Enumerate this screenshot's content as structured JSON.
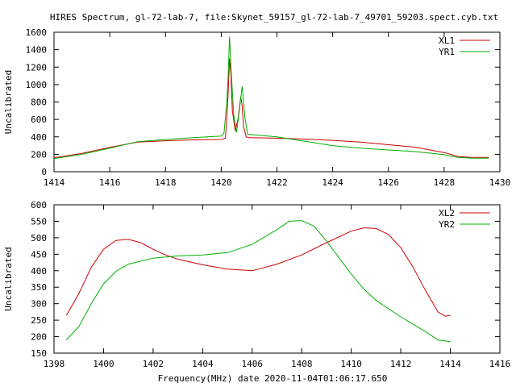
{
  "title": "HIRES Spectrum, gl-72-lab-7, file:Skynet_59157_gl-72-lab-7_49701_59203.spect.cyb.txt",
  "xlabel": "Frequency(MHz) date 2020-11-04T01:06:17.650",
  "colors": {
    "red": "#cc0000",
    "green": "#00b000"
  },
  "chart_data": [
    {
      "type": "line",
      "ylabel": "Uncalibrated",
      "xlim": [
        1414,
        1430
      ],
      "ylim": [
        0,
        1600
      ],
      "xticks": [
        1414,
        1416,
        1418,
        1420,
        1422,
        1424,
        1426,
        1428,
        1430
      ],
      "yticks": [
        0,
        200,
        400,
        600,
        800,
        1000,
        1200,
        1400,
        1600
      ],
      "grid": false,
      "legend": "top-right",
      "series": [
        {
          "name": "XL1",
          "color": "red",
          "points": [
            [
              1414.0,
              160
            ],
            [
              1415.0,
              210
            ],
            [
              1416.0,
              280
            ],
            [
              1417.0,
              340
            ],
            [
              1418.0,
              355
            ],
            [
              1419.0,
              365
            ],
            [
              1420.0,
              370
            ],
            [
              1420.15,
              385
            ],
            [
              1420.2,
              620
            ],
            [
              1420.25,
              900
            ],
            [
              1420.3,
              1300
            ],
            [
              1420.35,
              1100
            ],
            [
              1420.4,
              700
            ],
            [
              1420.5,
              470
            ],
            [
              1420.6,
              600
            ],
            [
              1420.7,
              860
            ],
            [
              1420.75,
              760
            ],
            [
              1420.8,
              520
            ],
            [
              1420.9,
              400
            ],
            [
              1421.0,
              390
            ],
            [
              1422.0,
              385
            ],
            [
              1423.0,
              375
            ],
            [
              1424.0,
              360
            ],
            [
              1425.0,
              340
            ],
            [
              1426.0,
              310
            ],
            [
              1427.0,
              280
            ],
            [
              1428.0,
              220
            ],
            [
              1428.5,
              175
            ],
            [
              1429.0,
              165
            ],
            [
              1429.6,
              165
            ]
          ]
        },
        {
          "name": "YR1",
          "color": "green",
          "points": [
            [
              1414.0,
              150
            ],
            [
              1415.0,
              200
            ],
            [
              1416.0,
              270
            ],
            [
              1417.0,
              345
            ],
            [
              1418.0,
              370
            ],
            [
              1419.0,
              390
            ],
            [
              1420.0,
              410
            ],
            [
              1420.1,
              440
            ],
            [
              1420.2,
              800
            ],
            [
              1420.25,
              1100
            ],
            [
              1420.3,
              1550
            ],
            [
              1420.35,
              1200
            ],
            [
              1420.45,
              650
            ],
            [
              1420.55,
              450
            ],
            [
              1420.65,
              700
            ],
            [
              1420.75,
              980
            ],
            [
              1420.85,
              620
            ],
            [
              1420.95,
              430
            ],
            [
              1422.0,
              400
            ],
            [
              1423.0,
              350
            ],
            [
              1424.0,
              300
            ],
            [
              1425.0,
              270
            ],
            [
              1426.0,
              250
            ],
            [
              1427.0,
              230
            ],
            [
              1428.0,
              195
            ],
            [
              1428.5,
              165
            ],
            [
              1429.0,
              155
            ],
            [
              1429.6,
              155
            ]
          ]
        }
      ]
    },
    {
      "type": "line",
      "ylabel": "Uncalibrated",
      "xlabel": "Frequency(MHz) date 2020-11-04T01:06:17.650",
      "xlim": [
        1398,
        1416
      ],
      "ylim": [
        150,
        600
      ],
      "xticks": [
        1398,
        1400,
        1402,
        1404,
        1406,
        1408,
        1410,
        1412,
        1414,
        1416
      ],
      "yticks": [
        150,
        200,
        250,
        300,
        350,
        400,
        450,
        500,
        550,
        600
      ],
      "grid": false,
      "legend": "top-right",
      "series": [
        {
          "name": "XL2",
          "color": "red",
          "points": [
            [
              1398.5,
              265
            ],
            [
              1399.0,
              330
            ],
            [
              1399.5,
              410
            ],
            [
              1400.0,
              465
            ],
            [
              1400.5,
              492
            ],
            [
              1401.0,
              495
            ],
            [
              1401.5,
              485
            ],
            [
              1402.0,
              465
            ],
            [
              1402.5,
              448
            ],
            [
              1403.0,
              435
            ],
            [
              1404.0,
              418
            ],
            [
              1405.0,
              405
            ],
            [
              1406.0,
              400
            ],
            [
              1407.0,
              420
            ],
            [
              1408.0,
              448
            ],
            [
              1409.0,
              485
            ],
            [
              1410.0,
              520
            ],
            [
              1410.5,
              530
            ],
            [
              1411.0,
              528
            ],
            [
              1411.5,
              510
            ],
            [
              1412.0,
              470
            ],
            [
              1412.5,
              410
            ],
            [
              1413.0,
              340
            ],
            [
              1413.5,
              275
            ],
            [
              1413.8,
              262
            ],
            [
              1414.0,
              265
            ]
          ]
        },
        {
          "name": "YR2",
          "color": "green",
          "points": [
            [
              1398.5,
              190
            ],
            [
              1399.0,
              230
            ],
            [
              1399.5,
              300
            ],
            [
              1400.0,
              360
            ],
            [
              1400.5,
              398
            ],
            [
              1401.0,
              420
            ],
            [
              1402.0,
              438
            ],
            [
              1403.0,
              445
            ],
            [
              1404.0,
              448
            ],
            [
              1405.0,
              455
            ],
            [
              1406.0,
              480
            ],
            [
              1407.0,
              525
            ],
            [
              1407.5,
              550
            ],
            [
              1408.0,
              552
            ],
            [
              1408.5,
              535
            ],
            [
              1409.0,
              490
            ],
            [
              1409.5,
              440
            ],
            [
              1410.0,
              390
            ],
            [
              1410.5,
              345
            ],
            [
              1411.0,
              310
            ],
            [
              1412.0,
              260
            ],
            [
              1413.0,
              215
            ],
            [
              1413.5,
              190
            ],
            [
              1414.0,
              185
            ]
          ]
        }
      ]
    }
  ]
}
